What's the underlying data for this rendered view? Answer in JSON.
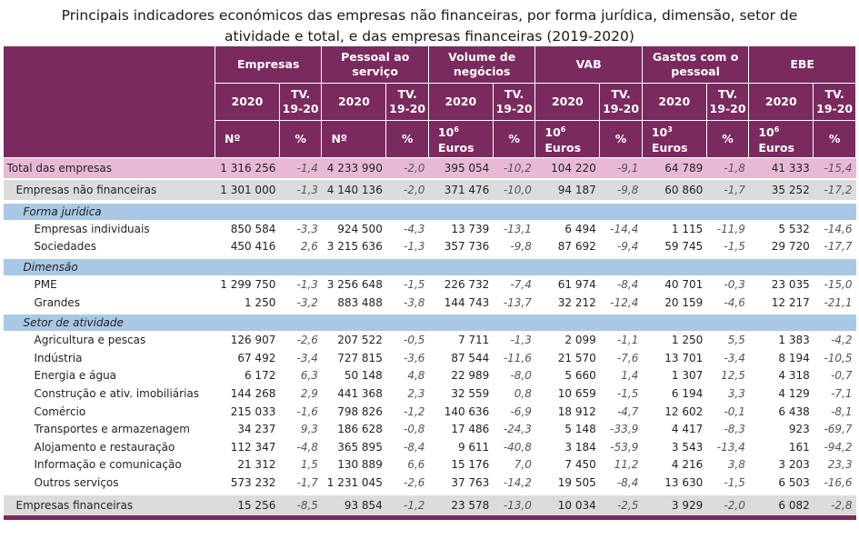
{
  "title": {
    "line1": "Principais indicadores económicos das empresas não financeiras, por forma jurídica, dimensão, setor de",
    "line2": "atividade e total, e das empresas financeiras (2019-2020)"
  },
  "header": {
    "groups": [
      "Empresas",
      "Pessoal ao serviço",
      "Volume de negócios",
      "VAB",
      "Gastos com o pessoal",
      "EBE"
    ],
    "year": "2020",
    "tv": "TV. 19-20",
    "units": [
      {
        "v": "Nº",
        "p": "%"
      },
      {
        "v": "Nº",
        "p": "%"
      },
      {
        "v_base": "10",
        "v_sup": "6",
        "v_sub": "Euros",
        "p": "%"
      },
      {
        "v_base": "10",
        "v_sup": "6",
        "v_sub": "Euros",
        "p": "%"
      },
      {
        "v_base": "10",
        "v_sup": "3",
        "v_sub": "Euros",
        "p": "%"
      },
      {
        "v_base": "10",
        "v_sup": "6",
        "v_sub": "Euros",
        "p": "%"
      }
    ]
  },
  "rows": {
    "total": {
      "label": "Total das empresas",
      "values": [
        "1 316 256",
        "-1,4",
        "4 233 990",
        "-2,0",
        "395 054",
        "-10,2",
        "104 220",
        "-9,1",
        "64 789",
        "-1,8",
        "41 333",
        "-15,4"
      ]
    },
    "nao_fin": {
      "label": "Empresas não financeiras",
      "values": [
        "1 301 000",
        "-1,3",
        "4 140 136",
        "-2,0",
        "371 476",
        "-10,0",
        "94 187",
        "-9,8",
        "60 860",
        "-1,7",
        "35 252",
        "-17,2"
      ]
    },
    "forma_label": "Forma jurídica",
    "forma": [
      {
        "label": "Empresas individuais",
        "values": [
          "850 584",
          "-3,3",
          "924 500",
          "-4,3",
          "13 739",
          "-13,1",
          "6 494",
          "-14,4",
          "1 115",
          "-11,9",
          "5 532",
          "-14,6"
        ]
      },
      {
        "label": "Sociedades",
        "values": [
          "450 416",
          "2,6",
          "3 215 636",
          "-1,3",
          "357 736",
          "-9,8",
          "87 692",
          "-9,4",
          "59 745",
          "-1,5",
          "29 720",
          "-17,7"
        ]
      }
    ],
    "dimensao_label": "Dimensão",
    "dimensao": [
      {
        "label": "PME",
        "values": [
          "1 299 750",
          "-1,3",
          "3 256 648",
          "-1,5",
          "226 732",
          "-7,4",
          "61 974",
          "-8,4",
          "40 701",
          "-0,3",
          "23 035",
          "-15,0"
        ]
      },
      {
        "label": "Grandes",
        "values": [
          "1 250",
          "-3,2",
          "883 488",
          "-3,8",
          "144 743",
          "-13,7",
          "32 212",
          "-12,4",
          "20 159",
          "-4,6",
          "12 217",
          "-21,1"
        ]
      }
    ],
    "setor_label": "Setor de atividade",
    "setor": [
      {
        "label": "Agricultura e pescas",
        "values": [
          "126 907",
          "-2,6",
          "207 522",
          "-0,5",
          "7 711",
          "-1,3",
          "2 099",
          "-1,1",
          "1 250",
          "5,5",
          "1 383",
          "-4,2"
        ]
      },
      {
        "label": "Indústria",
        "values": [
          "67 492",
          "-3,4",
          "727 815",
          "-3,6",
          "87 544",
          "-11,6",
          "21 570",
          "-7,6",
          "13 701",
          "-3,4",
          "8 194",
          "-10,5"
        ]
      },
      {
        "label": "Energia e água",
        "values": [
          "6 172",
          "6,3",
          "50 148",
          "4,8",
          "22 989",
          "-8,0",
          "5 660",
          "1,4",
          "1 307",
          "12,5",
          "4 318",
          "-0,7"
        ]
      },
      {
        "label": "Construção e ativ. imobiliárias",
        "values": [
          "144 268",
          "2,9",
          "441 368",
          "2,3",
          "32 559",
          "0,8",
          "10 659",
          "-1,5",
          "6 194",
          "3,3",
          "4 129",
          "-7,1"
        ]
      },
      {
        "label": "Comércio",
        "values": [
          "215 033",
          "-1,6",
          "798 826",
          "-1,2",
          "140 636",
          "-6,9",
          "18 912",
          "-4,7",
          "12 602",
          "-0,1",
          "6 438",
          "-8,1"
        ]
      },
      {
        "label": "Transportes e armazenagem",
        "values": [
          "34 237",
          "9,3",
          "186 628",
          "-0,8",
          "17 486",
          "-24,3",
          "5 148",
          "-33,9",
          "4 417",
          "-8,3",
          "923",
          "-69,7"
        ]
      },
      {
        "label": "Alojamento e restauração",
        "values": [
          "112 347",
          "-4,8",
          "365 895",
          "-8,4",
          "9 611",
          "-40,8",
          "3 184",
          "-53,9",
          "3 543",
          "-13,4",
          "161",
          "-94,2"
        ]
      },
      {
        "label": "Informação e comunicação",
        "values": [
          "21 312",
          "1,5",
          "130 889",
          "6,6",
          "15 176",
          "7,0",
          "7 450",
          "11,2",
          "4 216",
          "3,8",
          "3 203",
          "23,3"
        ]
      },
      {
        "label": "Outros serviços",
        "values": [
          "573 232",
          "-1,7",
          "1 231 045",
          "-2,6",
          "37 763",
          "-14,2",
          "19 505",
          "-8,4",
          "13 630",
          "-1,5",
          "6 503",
          "-16,6"
        ]
      }
    ],
    "fin": {
      "label": "Empresas financeiras",
      "values": [
        "15 256",
        "-8,5",
        "93 854",
        "-1,2",
        "23 578",
        "-13,0",
        "10 034",
        "-2,5",
        "3 929",
        "-2,0",
        "6 082",
        "-2,8"
      ]
    }
  }
}
